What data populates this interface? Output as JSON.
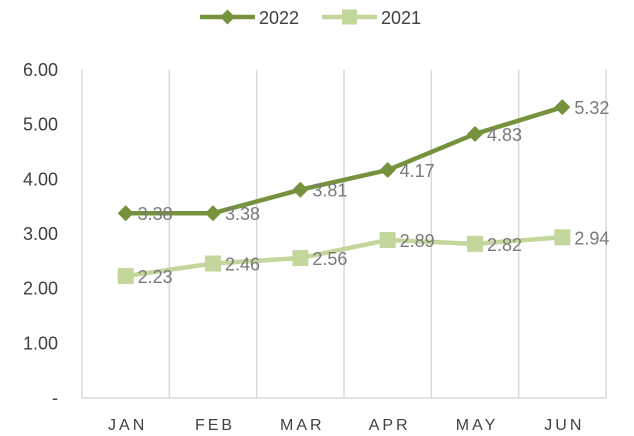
{
  "chart_data": {
    "type": "line",
    "categories": [
      "JAN",
      "FEB",
      "MAR",
      "APR",
      "MAY",
      "JUN"
    ],
    "series": [
      {
        "name": "2022",
        "values": [
          3.38,
          3.38,
          3.81,
          4.17,
          4.83,
          5.32
        ],
        "labels": [
          "3.38",
          "3.38",
          "3.81",
          "4.17",
          "4.83",
          "5.32"
        ],
        "color": "#76923c",
        "marker": "diamond"
      },
      {
        "name": "2021",
        "values": [
          2.23,
          2.46,
          2.56,
          2.89,
          2.82,
          2.94
        ],
        "labels": [
          "2.23",
          "2.46",
          "2.56",
          "2.89",
          "2.82",
          "2.94"
        ],
        "color": "#c3d69b",
        "marker": "square"
      }
    ],
    "ylim": [
      0,
      6
    ],
    "yticks": [
      0,
      1,
      2,
      3,
      4,
      5,
      6
    ],
    "ytick_labels": [
      "-",
      "1.00",
      "2.00",
      "3.00",
      "4.00",
      "5.00",
      "6.00"
    ],
    "grid": "vertical",
    "legend": "top-center",
    "title": "",
    "xlabel": "",
    "ylabel": ""
  }
}
